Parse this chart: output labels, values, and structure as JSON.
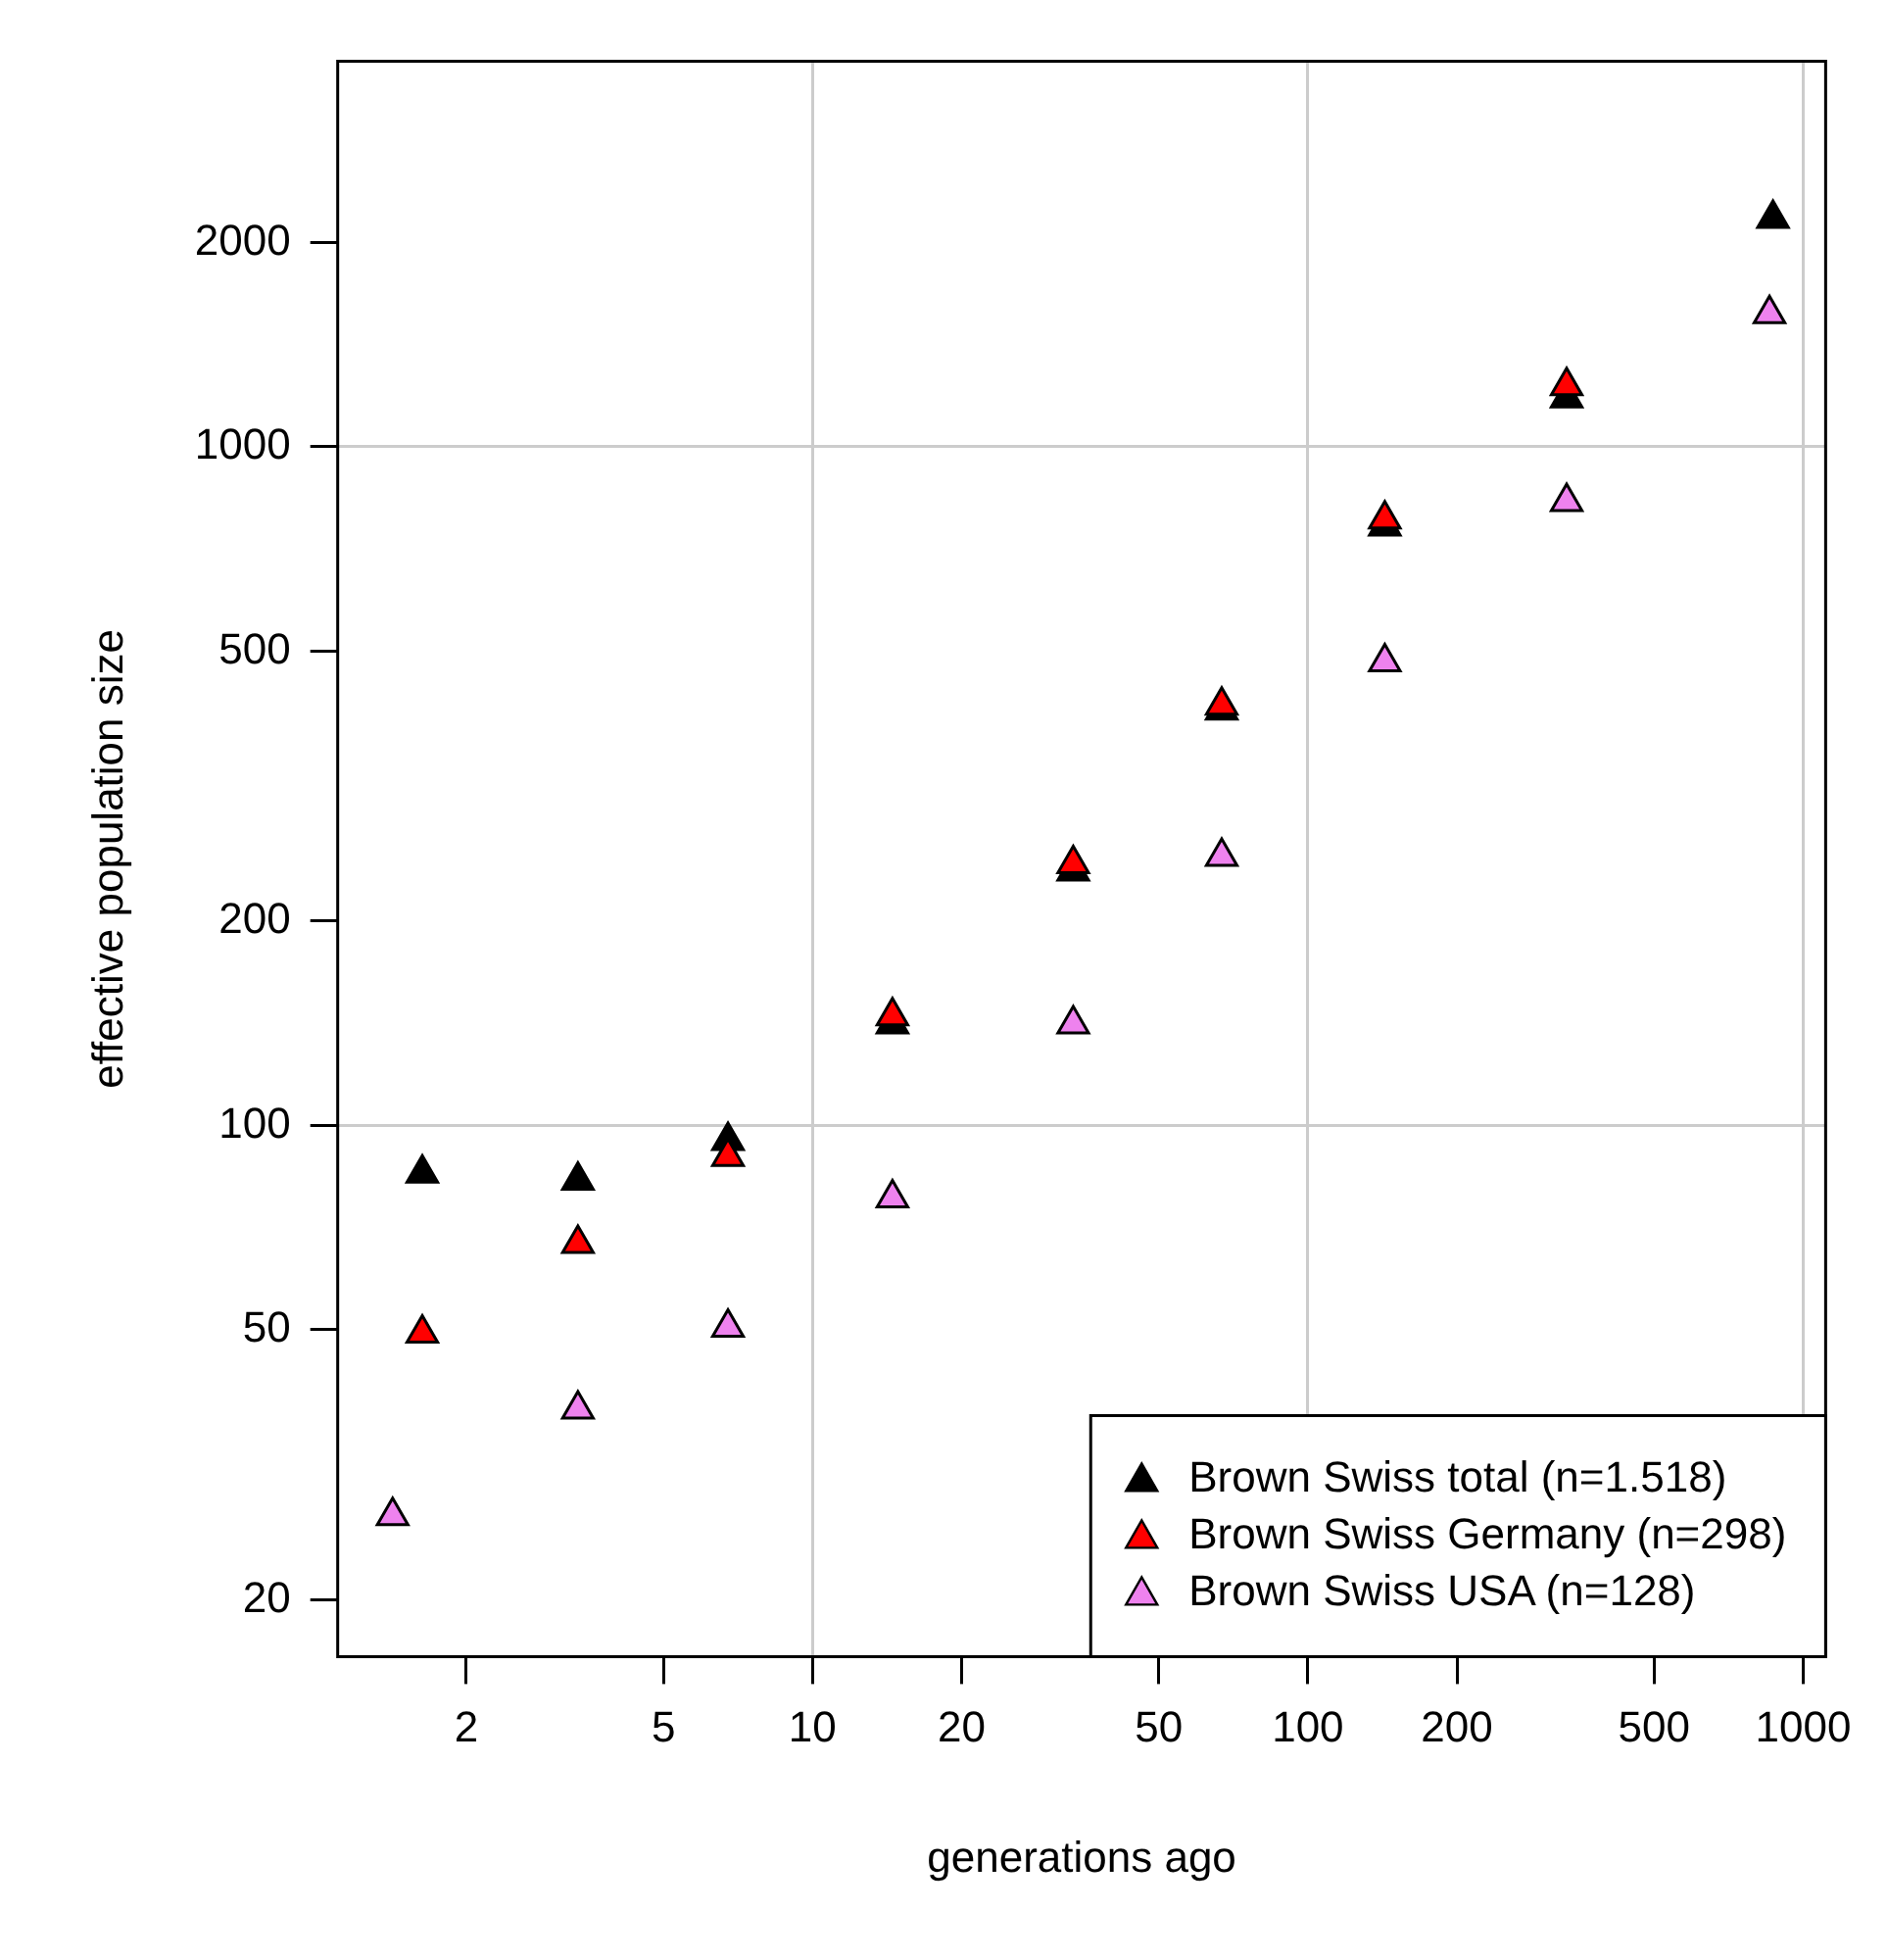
{
  "chart_data": {
    "type": "scatter",
    "xlabel": "generations ago",
    "ylabel": "effective population size",
    "log": "xy",
    "grid": true,
    "marker": "triangle",
    "legend": "bottom right",
    "xlim": [
      1.1,
      1110
    ],
    "ylim": [
      16.5,
      3700
    ],
    "xticks": [
      2,
      5,
      10,
      20,
      50,
      100,
      200,
      500,
      1000
    ],
    "yticks": [
      20,
      50,
      100,
      200,
      500,
      1000,
      2000
    ],
    "x": [
      1.63,
      3.36,
      6.75,
      14.5,
      33.6,
      67,
      143,
      333,
      869
    ],
    "series": [
      {
        "name": "Brown Swiss total (n=1.518)",
        "color": "#000000",
        "values": [
          85,
          83,
          95,
          141,
          237,
          409,
          764,
          1180,
          2170
        ]
      },
      {
        "name": "Brown Swiss Germany (n=298)",
        "color": "#ff0000",
        "values": [
          49.4,
          67,
          90,
          145,
          243,
          416,
          782,
          1230,
          null
        ]
      },
      {
        "name": "Brown Swiss USA (n=128)",
        "color": "#ee82ee",
        "x": [
          1.42,
          3.36,
          6.75,
          14.5,
          33.6,
          67,
          143,
          333,
          855
        ],
        "values": [
          26.6,
          38.2,
          50.4,
          78.2,
          141,
          249,
          482,
          830,
          1570
        ]
      }
    ]
  }
}
